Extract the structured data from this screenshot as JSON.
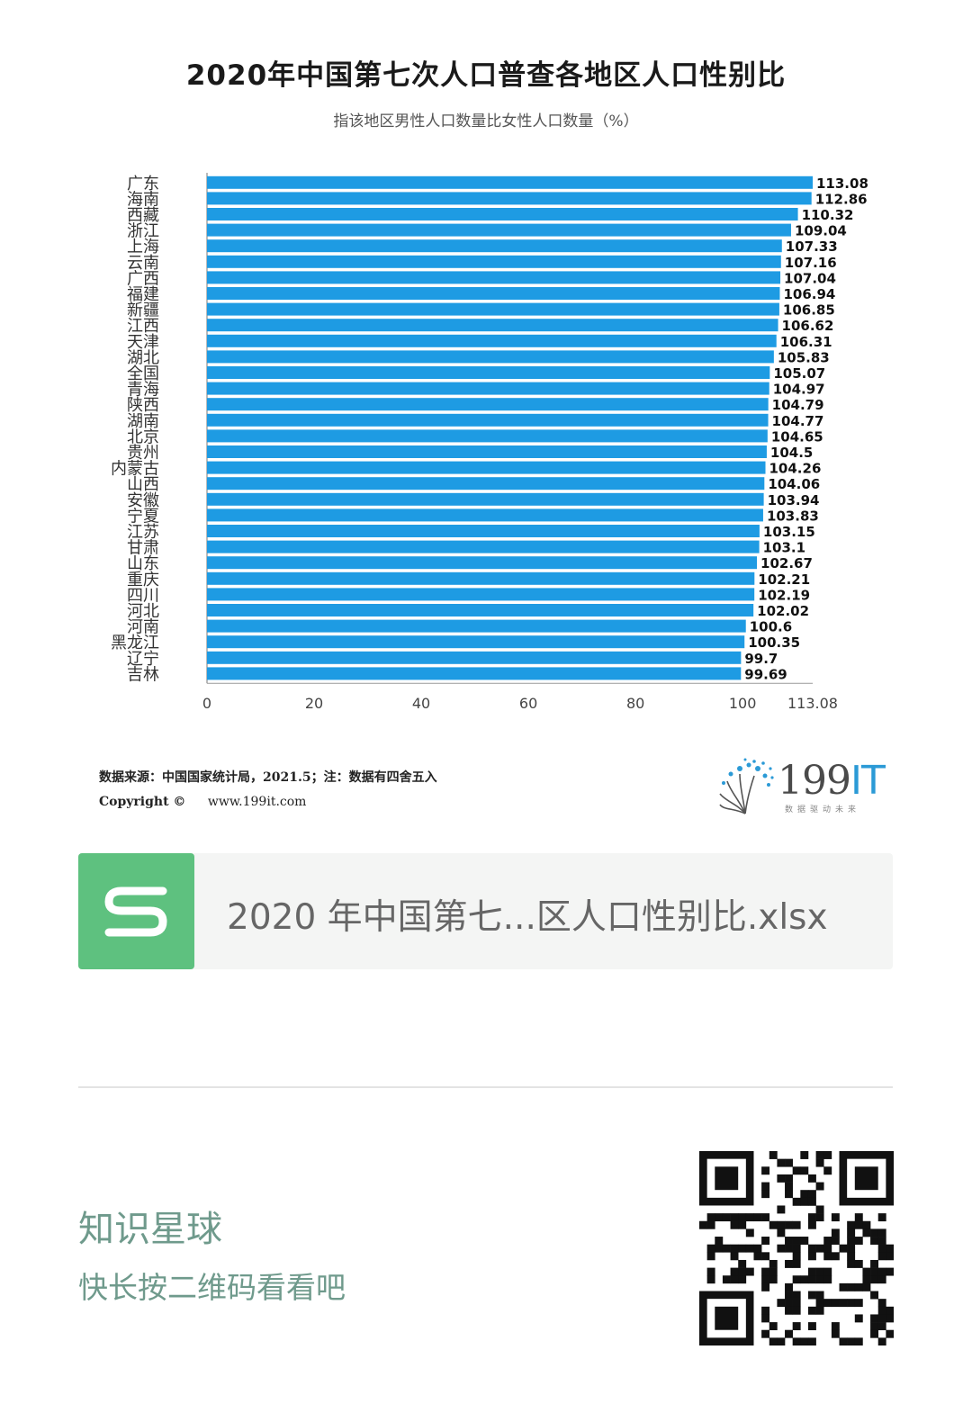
{
  "chart_data": {
    "type": "bar",
    "orientation": "horizontal",
    "title": "2020年中国第七次人口普查各地区人口性别比",
    "subtitle": "指该地区男性人口数量比女性人口数量（%）",
    "categories": [
      "广东",
      "海南",
      "西藏",
      "浙江",
      "上海",
      "云南",
      "广西",
      "福建",
      "新疆",
      "江西",
      "天津",
      "湖北",
      "全国",
      "青海",
      "陕西",
      "湖南",
      "北京",
      "贵州",
      "内蒙古",
      "山西",
      "安徽",
      "宁夏",
      "江苏",
      "甘肃",
      "山东",
      "重庆",
      "四川",
      "河北",
      "河南",
      "黑龙江",
      "辽宁",
      "吉林"
    ],
    "values": [
      113.08,
      112.86,
      110.32,
      109.04,
      107.33,
      107.16,
      107.04,
      106.94,
      106.85,
      106.62,
      106.31,
      105.83,
      105.07,
      104.97,
      104.79,
      104.77,
      104.65,
      104.5,
      104.26,
      104.06,
      103.94,
      103.83,
      103.15,
      103.1,
      102.67,
      102.21,
      102.19,
      102.02,
      100.6,
      100.35,
      99.7,
      99.69
    ],
    "value_labels": [
      "113.08",
      "112.86",
      "110.32",
      "109.04",
      "107.33",
      "107.16",
      "107.04",
      "106.94",
      "106.85",
      "106.62",
      "106.31",
      "105.83",
      "105.07",
      "104.97",
      "104.79",
      "104.77",
      "104.65",
      "104.5",
      "104.26",
      "104.06",
      "103.94",
      "103.83",
      "103.15",
      "103.1",
      "102.67",
      "102.21",
      "102.19",
      "102.02",
      "100.6",
      "100.35",
      "99.7",
      "99.69"
    ],
    "xlim": [
      0,
      113.08
    ],
    "xticks": [
      0,
      20,
      40,
      60,
      80,
      100,
      113.08
    ],
    "xtick_labels": [
      "0",
      "20",
      "40",
      "60",
      "80",
      "100",
      "113.08"
    ],
    "bar_color": "#1e9be3",
    "grid": false,
    "legend": "none"
  },
  "source": {
    "text": "数据来源：中国国家统计局，2021.5；注：数据有四舍五入",
    "copyright_label": "Copyright ©",
    "url": "www.199it.com"
  },
  "logo": {
    "num": "199",
    "it": "IT",
    "slogan": "数据驱动未来"
  },
  "file": {
    "icon": "spreadsheet-s-icon",
    "name": "2020 年中国第七...区人口性别比.xlsx"
  },
  "promo": {
    "title": "知识星球",
    "subtitle": "快长按二维码看看吧"
  },
  "colors": {
    "bar": "#1e9be3",
    "file_icon": "#5ec17f",
    "promo_text": "#6f9a8c"
  }
}
